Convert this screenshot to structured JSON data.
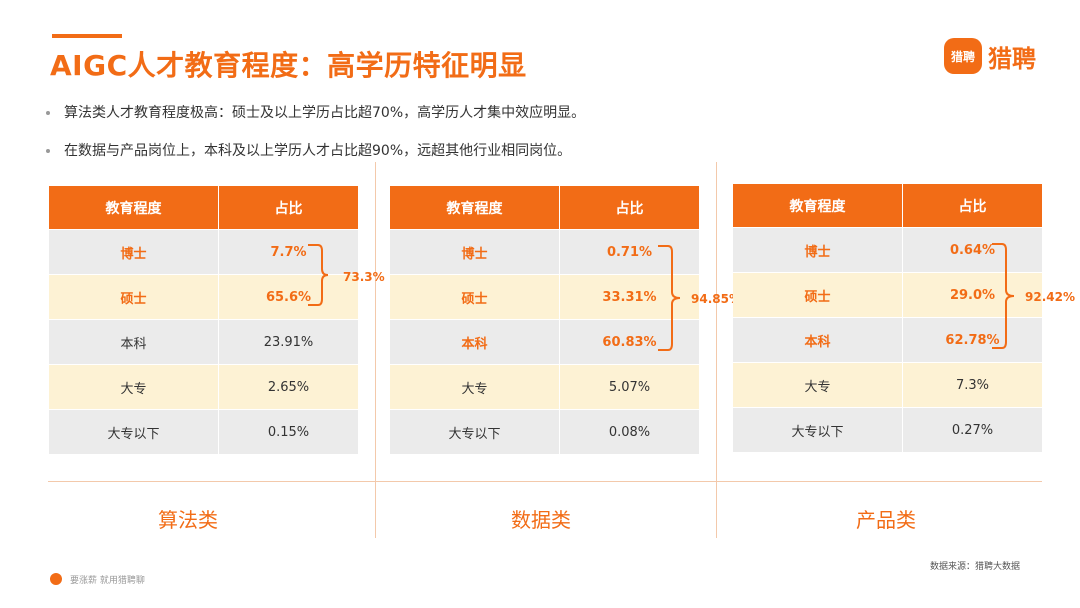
{
  "header": {
    "title": "AIGC人才教育程度：高学历特征明显",
    "logo_badge": "猎聘",
    "logo_text": "猎聘"
  },
  "bullets": [
    "算法类人才教育程度极高：硕士及以上学历占比超70%，高学历人才集中效应明显。",
    "在数据与产品岗位上，本科及以上学历人才占比超90%，远超其他行业相同岗位。"
  ],
  "table_headers": [
    "教育程度",
    "占比"
  ],
  "tables": [
    {
      "category": "算法类",
      "rows": [
        {
          "level": "博士",
          "pct": "7.7%"
        },
        {
          "level": "硕士",
          "pct": "65.6%"
        },
        {
          "level": "本科",
          "pct": "23.91%"
        },
        {
          "level": "大专",
          "pct": "2.65%"
        },
        {
          "level": "大专以下",
          "pct": "0.15%"
        }
      ],
      "bracket_total": "73.3%"
    },
    {
      "category": "数据类",
      "rows": [
        {
          "level": "博士",
          "pct": "0.71%"
        },
        {
          "level": "硕士",
          "pct": "33.31%"
        },
        {
          "level": "本科",
          "pct": "60.83%"
        },
        {
          "level": "大专",
          "pct": "5.07%"
        },
        {
          "level": "大专以下",
          "pct": "0.08%"
        }
      ],
      "bracket_total": "94.85%"
    },
    {
      "category": "产品类",
      "rows": [
        {
          "level": "博士",
          "pct": "0.64%"
        },
        {
          "level": "硕士",
          "pct": "29.0%"
        },
        {
          "level": "本科",
          "pct": "62.78%"
        },
        {
          "level": "大专",
          "pct": "7.3%"
        },
        {
          "level": "大专以下",
          "pct": "0.27%"
        }
      ],
      "bracket_total": "92.42%"
    }
  ],
  "footer": {
    "slogan": "要涨薪 就用猎聘聊",
    "source": "数据来源：猎聘大数据"
  },
  "colors": {
    "accent": "#f26c16",
    "row_gray": "#ebebeb",
    "row_cream": "#fdf2d4"
  }
}
